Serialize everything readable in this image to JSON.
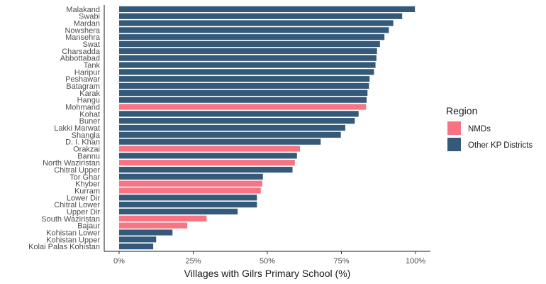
{
  "chart_data": {
    "type": "bar",
    "orientation": "horizontal",
    "xlabel": "Villages with Gilrs Primary School (%)",
    "xlim": [
      0,
      100
    ],
    "x_ticks": [
      0,
      25,
      50,
      75,
      100
    ],
    "x_tick_labels": [
      "0%",
      "25%",
      "50%",
      "75%",
      "100%"
    ],
    "grid": false,
    "legend": {
      "title": "Region",
      "position": "right",
      "entries": [
        {
          "name": "NMDs",
          "color": "#f8766d"
        },
        {
          "name": "Other KP Districts",
          "color": "#365a7a"
        }
      ]
    },
    "series_colors": {
      "NMDs": "#f87483",
      "Other KP Districts": "#355a79"
    },
    "bars": [
      {
        "category": "Malakand",
        "value": 99.8,
        "region": "Other KP Districts"
      },
      {
        "category": "Swabi",
        "value": 95.5,
        "region": "Other KP Districts"
      },
      {
        "category": "Mardan",
        "value": 92.5,
        "region": "Other KP Districts"
      },
      {
        "category": "Nowshera",
        "value": 91.0,
        "region": "Other KP Districts"
      },
      {
        "category": "Mansehra",
        "value": 89.5,
        "region": "Other KP Districts"
      },
      {
        "category": "Swat",
        "value": 88.0,
        "region": "Other KP Districts"
      },
      {
        "category": "Charsadda",
        "value": 87.0,
        "region": "Other KP Districts"
      },
      {
        "category": "Abbottabad",
        "value": 86.8,
        "region": "Other KP Districts"
      },
      {
        "category": "Tank",
        "value": 86.5,
        "region": "Other KP Districts"
      },
      {
        "category": "Haripur",
        "value": 86.0,
        "region": "Other KP Districts"
      },
      {
        "category": "Peshawar",
        "value": 84.5,
        "region": "Other KP Districts"
      },
      {
        "category": "Batagram",
        "value": 84.3,
        "region": "Other KP Districts"
      },
      {
        "category": "Karak",
        "value": 83.8,
        "region": "Other KP Districts"
      },
      {
        "category": "Hangu",
        "value": 83.5,
        "region": "Other KP Districts"
      },
      {
        "category": "Mohmand",
        "value": 83.3,
        "region": "NMDs"
      },
      {
        "category": "Kohat",
        "value": 80.8,
        "region": "Other KP Districts"
      },
      {
        "category": "Buner",
        "value": 79.5,
        "region": "Other KP Districts"
      },
      {
        "category": "Lakki Marwat",
        "value": 76.3,
        "region": "Other KP Districts"
      },
      {
        "category": "Shangla",
        "value": 74.8,
        "region": "Other KP Districts"
      },
      {
        "category": "D. I. Khan",
        "value": 68.0,
        "region": "Other KP Districts"
      },
      {
        "category": "Orakzai",
        "value": 61.0,
        "region": "NMDs"
      },
      {
        "category": "Bannu",
        "value": 60.0,
        "region": "Other KP Districts"
      },
      {
        "category": "North Waziristan",
        "value": 59.3,
        "region": "NMDs"
      },
      {
        "category": "Chitral Upper",
        "value": 58.5,
        "region": "Other KP Districts"
      },
      {
        "category": "Tor Ghar",
        "value": 48.5,
        "region": "Other KP Districts"
      },
      {
        "category": "Khyber",
        "value": 48.3,
        "region": "NMDs"
      },
      {
        "category": "Kurram",
        "value": 47.8,
        "region": "NMDs"
      },
      {
        "category": "Lower Dir",
        "value": 46.5,
        "region": "Other KP Districts"
      },
      {
        "category": "Chitral Lower",
        "value": 46.5,
        "region": "Other KP Districts"
      },
      {
        "category": "Upper Dir",
        "value": 40.0,
        "region": "Other KP Districts"
      },
      {
        "category": "South Waziristan",
        "value": 29.5,
        "region": "NMDs"
      },
      {
        "category": "Bajaur",
        "value": 23.0,
        "region": "NMDs"
      },
      {
        "category": "Kohistan Lower",
        "value": 18.0,
        "region": "Other KP Districts"
      },
      {
        "category": "Kohistan Upper",
        "value": 12.5,
        "region": "Other KP Districts"
      },
      {
        "category": "Kolai Palas Kohistan",
        "value": 11.5,
        "region": "Other KP Districts"
      }
    ]
  }
}
